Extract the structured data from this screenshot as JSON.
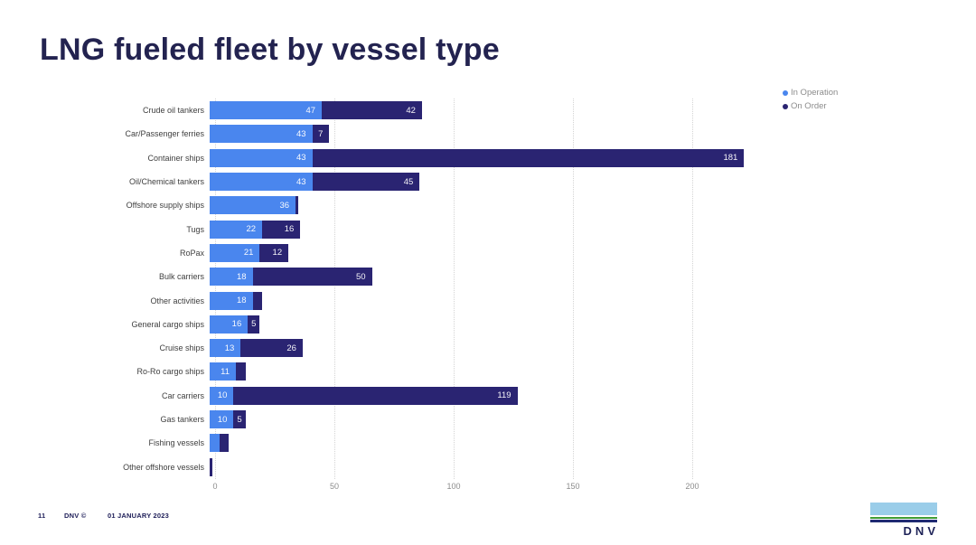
{
  "slide": {
    "title": "LNG fueled fleet by vessel type",
    "footer": {
      "page": "11",
      "brand": "DNV ©",
      "date": "01 JANUARY 2023"
    },
    "logo_text": "DNV"
  },
  "legend": {
    "position": "top-right",
    "items": [
      {
        "label": "In Operation",
        "color": "#4a86ee"
      },
      {
        "label": "On Order",
        "color": "#2a2472"
      }
    ]
  },
  "chart_data": {
    "type": "bar",
    "orientation": "horizontal",
    "stacked": true,
    "title": "LNG fueled fleet by vessel type",
    "xlabel": "",
    "ylabel": "",
    "xlim": [
      0,
      233
    ],
    "x_ticks": [
      0,
      50,
      100,
      150,
      200
    ],
    "grid": "vertical-dotted",
    "value_label_min": 5,
    "categories": [
      "Crude oil tankers",
      "Car/Passenger ferries",
      "Container ships",
      "Oil/Chemical tankers",
      "Offshore supply ships",
      "Tugs",
      "RoPax",
      "Bulk carriers",
      "Other activities",
      "General cargo ships",
      "Cruise ships",
      "Ro-Ro cargo ships",
      "Car carriers",
      "Gas tankers",
      "Fishing vessels",
      "Other offshore vessels"
    ],
    "series": [
      {
        "name": "In Operation",
        "color": "#4a86ee",
        "values": [
          47,
          43,
          43,
          43,
          36,
          22,
          21,
          18,
          18,
          16,
          13,
          11,
          10,
          10,
          4,
          0
        ]
      },
      {
        "name": "On Order",
        "color": "#2a2472",
        "values": [
          42,
          7,
          181,
          45,
          1,
          16,
          12,
          50,
          4,
          5,
          26,
          4,
          119,
          5,
          4,
          1
        ]
      }
    ],
    "colors": {
      "in_operation": "#4a86ee",
      "on_order": "#2a2472",
      "title": "#232350",
      "axis_text": "#8c8c8c"
    }
  }
}
